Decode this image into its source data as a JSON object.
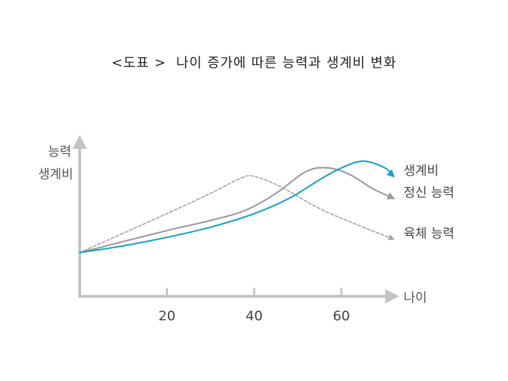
{
  "title": "<도표 >  나이 증가에 따른 능력과 생계비 변화",
  "chart_data": {
    "type": "line",
    "ylabel_lines": [
      "능력",
      "생계비"
    ],
    "xlabel": "나이",
    "x_ticks": [
      20,
      40,
      60
    ],
    "xlim": [
      0,
      72
    ],
    "ylim": [
      0,
      100
    ],
    "grid": false,
    "series": [
      {
        "name": "생계비",
        "color": "#1aa3c6",
        "style": "solid",
        "points": [
          [
            0,
            25
          ],
          [
            10,
            29
          ],
          [
            20,
            34
          ],
          [
            30,
            40
          ],
          [
            40,
            48
          ],
          [
            48,
            57
          ],
          [
            55,
            68
          ],
          [
            60,
            75
          ],
          [
            65,
            79
          ],
          [
            70,
            75
          ],
          [
            72,
            70
          ]
        ]
      },
      {
        "name": "정신 능력",
        "color": "#9b9b9b",
        "style": "solid",
        "points": [
          [
            0,
            25
          ],
          [
            20,
            38
          ],
          [
            30,
            44
          ],
          [
            38,
            50
          ],
          [
            45,
            60
          ],
          [
            52,
            73
          ],
          [
            57,
            75
          ],
          [
            62,
            71
          ],
          [
            67,
            63
          ],
          [
            72,
            57
          ]
        ]
      },
      {
        "name": "육체 능력",
        "color": "#a8a8a8",
        "style": "dashed",
        "points": [
          [
            0,
            25
          ],
          [
            20,
            48
          ],
          [
            30,
            60
          ],
          [
            37,
            69
          ],
          [
            40,
            70
          ],
          [
            46,
            64
          ],
          [
            55,
            51
          ],
          [
            65,
            40
          ],
          [
            72,
            33
          ]
        ]
      }
    ]
  }
}
